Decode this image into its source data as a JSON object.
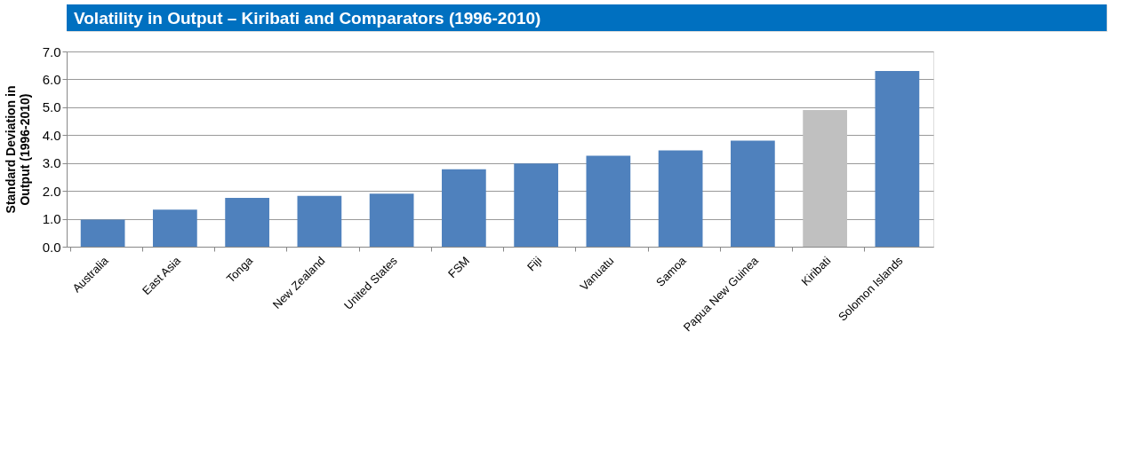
{
  "chart_data": {
    "type": "bar",
    "title": "Volatility in Output – Kiribati and Comparators (1996-2010)",
    "ylabel": "Standard Deviation in Output (1996-2010)",
    "categories": [
      "Australia",
      "East Asia",
      "Tonga",
      "New Zealand",
      "United States",
      "FSM",
      "Fiji",
      "Vanuatu",
      "Samoa",
      "Papua New Guinea",
      "Kiribati",
      "Solomon Islands"
    ],
    "values": [
      0.97,
      1.33,
      1.75,
      1.82,
      1.9,
      2.78,
      2.98,
      3.26,
      3.45,
      3.8,
      4.9,
      6.3
    ],
    "colors": [
      "#4f81bd",
      "#4f81bd",
      "#4f81bd",
      "#4f81bd",
      "#4f81bd",
      "#4f81bd",
      "#4f81bd",
      "#4f81bd",
      "#4f81bd",
      "#4f81bd",
      "#c0c0c0",
      "#4f81bd"
    ],
    "ylim": [
      0,
      7
    ],
    "yticks": [
      {
        "value": 0,
        "label": "0.0"
      },
      {
        "value": 1,
        "label": "1.0"
      },
      {
        "value": 2,
        "label": "2.0"
      },
      {
        "value": 3,
        "label": "3.0"
      },
      {
        "value": 4,
        "label": "4.0"
      },
      {
        "value": 5,
        "label": "5.0"
      },
      {
        "value": 6,
        "label": "6.0"
      },
      {
        "value": 7,
        "label": "7.0"
      }
    ],
    "grid": "y",
    "legend": false
  }
}
